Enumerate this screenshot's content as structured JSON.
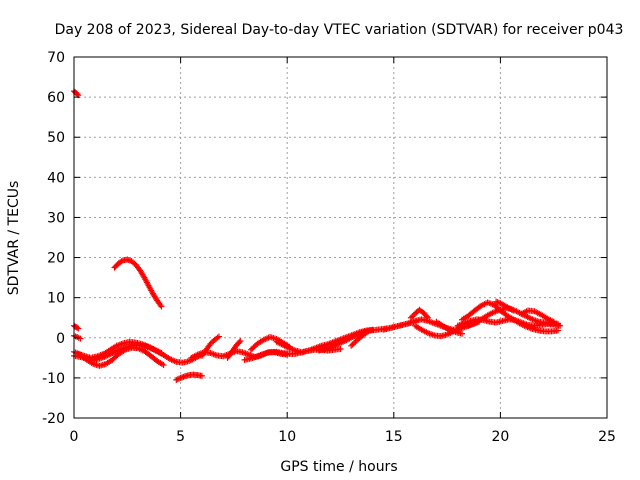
{
  "chart_data": {
    "type": "scatter",
    "title": "Day 208 of 2023, Sidereal Day-to-day VTEC variation (SDTVAR) for receiver p043",
    "xlabel": "GPS time / hours",
    "ylabel": "SDTVAR / TECUs",
    "xlim": [
      0,
      25
    ],
    "ylim": [
      -20,
      70
    ],
    "xticks": [
      0,
      5,
      10,
      15,
      20,
      25
    ],
    "yticks": [
      -20,
      -10,
      0,
      10,
      20,
      30,
      40,
      50,
      60,
      70
    ],
    "grid": true,
    "marker": "+",
    "series": [
      {
        "name": "SDTVAR",
        "color": "#ff0000",
        "tracks": [
          {
            "x": [
              0.0,
              0.1,
              0.2
            ],
            "y": [
              61.5,
              61.0,
              60.5
            ]
          },
          {
            "x": [
              0.0,
              0.1,
              0.2
            ],
            "y": [
              3.0,
              2.7,
              2.3
            ]
          },
          {
            "x": [
              0.0,
              0.15,
              0.3
            ],
            "y": [
              0.5,
              0.2,
              -0.2
            ]
          },
          {
            "x": [
              0.0,
              0.3,
              0.6,
              0.9,
              1.2,
              1.5,
              1.8,
              2.1,
              2.4,
              2.7,
              3.0,
              3.3,
              3.6,
              3.9,
              4.2,
              4.5,
              4.8,
              5.1,
              5.4,
              5.7,
              6.0
            ],
            "y": [
              -4.5,
              -4.8,
              -5.2,
              -5.6,
              -5.2,
              -4.6,
              -3.8,
              -3.0,
              -2.4,
              -2.0,
              -1.8,
              -2.0,
              -2.6,
              -3.4,
              -4.3,
              -5.3,
              -6.0,
              -6.2,
              -5.8,
              -5.0,
              -4.2
            ]
          },
          {
            "x": [
              0.0,
              0.3,
              0.6,
              0.9,
              1.2,
              1.5,
              1.8,
              2.1,
              2.4,
              2.7,
              3.0,
              3.3,
              3.6,
              3.9,
              4.2
            ],
            "y": [
              -3.5,
              -4.2,
              -5.5,
              -6.5,
              -7.0,
              -6.5,
              -5.5,
              -4.0,
              -3.0,
              -2.5,
              -2.6,
              -3.3,
              -4.5,
              -5.8,
              -6.8
            ]
          },
          {
            "x": [
              0.2,
              0.5,
              0.8,
              1.1,
              1.4,
              1.7,
              2.0,
              2.3,
              2.6,
              2.9,
              3.2,
              3.5,
              3.8,
              4.1
            ],
            "y": [
              -4.0,
              -4.5,
              -5.0,
              -4.6,
              -4.0,
              -3.0,
              -2.0,
              -1.4,
              -1.0,
              -1.2,
              -1.6,
              -2.2,
              -3.0,
              -3.8
            ]
          },
          {
            "x": [
              1.9,
              2.1,
              2.3,
              2.5,
              2.7,
              2.9,
              3.1,
              3.3,
              3.5,
              3.7,
              3.9,
              4.1
            ],
            "y": [
              17.5,
              18.6,
              19.3,
              19.5,
              19.1,
              18.2,
              16.8,
              15.0,
              13.0,
              11.0,
              9.3,
              7.8
            ]
          },
          {
            "x": [
              4.8,
              5.0,
              5.2,
              5.4,
              5.6,
              5.8,
              6.0
            ],
            "y": [
              -10.5,
              -10.0,
              -9.6,
              -9.3,
              -9.2,
              -9.3,
              -9.5
            ]
          },
          {
            "x": [
              5.5,
              5.8,
              6.1,
              6.4,
              6.7,
              7.0,
              7.3,
              7.6,
              7.9,
              8.2,
              8.5,
              8.8,
              9.1,
              9.4,
              9.7,
              10.0
            ],
            "y": [
              -5.0,
              -4.2,
              -3.6,
              -3.8,
              -4.4,
              -4.6,
              -4.0,
              -3.3,
              -3.6,
              -4.2,
              -4.8,
              -4.4,
              -3.6,
              -3.6,
              -4.0,
              -4.2
            ]
          },
          {
            "x": [
              6.0,
              6.2,
              6.4,
              6.6,
              6.8
            ],
            "y": [
              -4.5,
              -3.0,
              -1.5,
              -0.5,
              0.3
            ]
          },
          {
            "x": [
              7.2,
              7.4,
              7.6,
              7.8
            ],
            "y": [
              -5.0,
              -3.5,
              -2.0,
              -0.8
            ]
          },
          {
            "x": [
              8.0,
              8.3,
              8.6,
              8.9,
              9.2,
              9.5,
              9.8,
              10.1,
              10.4,
              10.7,
              11.0,
              11.3,
              11.6,
              11.9,
              12.2,
              12.5
            ],
            "y": [
              -5.5,
              -5.2,
              -4.6,
              -4.0,
              -3.6,
              -3.5,
              -3.8,
              -4.0,
              -4.0,
              -3.6,
              -3.2,
              -3.0,
              -3.0,
              -3.2,
              -3.0,
              -2.8
            ]
          },
          {
            "x": [
              8.3,
              8.6,
              8.9,
              9.2,
              9.5,
              9.8,
              10.1
            ],
            "y": [
              -3.0,
              -1.5,
              -0.5,
              0.2,
              -0.3,
              -1.2,
              -2.2
            ]
          },
          {
            "x": [
              9.5,
              9.8,
              10.1,
              10.4,
              10.7,
              11.0,
              11.3,
              11.6,
              11.9,
              12.2,
              12.5,
              12.8,
              13.1,
              13.4,
              13.7,
              14.0
            ],
            "y": [
              -1.0,
              -1.8,
              -2.6,
              -3.2,
              -3.6,
              -3.2,
              -2.6,
              -2.0,
              -1.6,
              -1.0,
              -0.4,
              0.2,
              0.8,
              1.4,
              1.8,
              2.0
            ]
          },
          {
            "x": [
              11.5,
              11.8,
              12.1,
              12.4,
              12.7,
              13.0,
              13.3,
              13.6,
              13.9,
              14.2,
              14.5,
              14.8,
              15.1,
              15.4,
              15.7,
              16.0
            ],
            "y": [
              -3.2,
              -2.8,
              -2.2,
              -1.5,
              -0.8,
              0.0,
              0.8,
              1.4,
              1.8,
              2.0,
              2.2,
              2.4,
              2.8,
              3.2,
              3.6,
              4.0
            ]
          },
          {
            "x": [
              13.0,
              13.2,
              13.4,
              13.6,
              13.8
            ],
            "y": [
              -2.0,
              -1.0,
              0.0,
              0.8,
              1.6
            ]
          },
          {
            "x": [
              14.5,
              14.8,
              15.1,
              15.4,
              15.7,
              16.0,
              16.3,
              16.6,
              16.9,
              17.2,
              17.5,
              17.8,
              18.1,
              18.4,
              18.7,
              19.0
            ],
            "y": [
              2.0,
              2.4,
              2.8,
              3.2,
              3.6,
              4.2,
              4.6,
              4.2,
              3.6,
              3.0,
              2.4,
              2.0,
              2.2,
              2.8,
              3.4,
              4.0
            ]
          },
          {
            "x": [
              15.8,
              16.0,
              16.2,
              16.4,
              16.6
            ],
            "y": [
              5.0,
              6.0,
              7.0,
              6.2,
              5.0
            ]
          },
          {
            "x": [
              16.0,
              16.3,
              16.6,
              16.9,
              17.2,
              17.5,
              17.8,
              18.1
            ],
            "y": [
              3.0,
              2.0,
              1.2,
              0.6,
              0.4,
              0.8,
              1.6,
              2.4
            ]
          },
          {
            "x": [
              17.0,
              17.3,
              17.6,
              17.9,
              18.2
            ],
            "y": [
              4.0,
              3.0,
              2.0,
              1.4,
              1.0
            ]
          },
          {
            "x": [
              18.0,
              18.3,
              18.6,
              18.9,
              19.2,
              19.5,
              19.8,
              20.1,
              20.4,
              20.7,
              21.0,
              21.3,
              21.6,
              21.9,
              22.2,
              22.5,
              22.8
            ],
            "y": [
              3.0,
              3.6,
              4.2,
              4.6,
              4.4,
              4.0,
              3.8,
              4.2,
              4.6,
              4.4,
              3.8,
              3.2,
              3.0,
              3.2,
              3.4,
              3.3,
              3.0
            ]
          },
          {
            "x": [
              18.2,
              18.5,
              18.8,
              19.1,
              19.4,
              19.7,
              20.0,
              20.3,
              20.6,
              20.9,
              21.2,
              21.5,
              21.8,
              22.1,
              22.4,
              22.7
            ],
            "y": [
              4.5,
              5.5,
              6.8,
              8.0,
              8.8,
              8.2,
              6.8,
              5.6,
              4.6,
              3.6,
              2.8,
              2.2,
              1.8,
              1.6,
              1.6,
              1.8
            ]
          },
          {
            "x": [
              18.5,
              18.8,
              19.1,
              19.4,
              19.7,
              20.0,
              20.3,
              20.6,
              20.9,
              21.2,
              21.5,
              21.8,
              22.1,
              22.4,
              22.7
            ],
            "y": [
              3.0,
              3.6,
              4.6,
              5.6,
              6.4,
              7.0,
              7.4,
              7.0,
              6.2,
              5.4,
              4.6,
              4.0,
              3.8,
              3.6,
              3.5
            ]
          },
          {
            "x": [
              19.8,
              20.0,
              20.2,
              20.4,
              20.6
            ],
            "y": [
              9.0,
              8.6,
              8.0,
              7.4,
              6.8
            ]
          },
          {
            "x": [
              21.0,
              21.3,
              21.6,
              21.9,
              22.2,
              22.5
            ],
            "y": [
              6.0,
              6.8,
              6.6,
              5.8,
              4.8,
              4.0
            ]
          }
        ]
      }
    ]
  }
}
